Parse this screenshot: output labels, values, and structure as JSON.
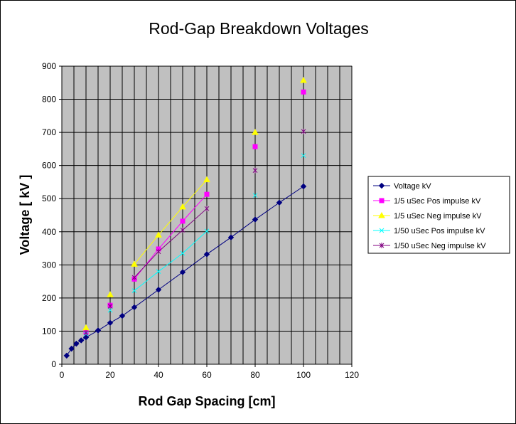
{
  "chart_data": {
    "type": "scatter",
    "title": "Rod-Gap Breakdown Voltages",
    "xlabel": "Rod Gap Spacing [cm]",
    "ylabel": "Voltage [ kV ]",
    "xlim": [
      0,
      120
    ],
    "ylim": [
      0,
      900
    ],
    "xticks": [
      0,
      20,
      40,
      60,
      80,
      100,
      120
    ],
    "yticks": [
      0,
      100,
      200,
      300,
      400,
      500,
      600,
      700,
      800,
      900
    ],
    "grid": true,
    "legend_position": "right",
    "plot_background": "#c0c0c0",
    "series": [
      {
        "name": "Voltage kV",
        "color": "#000080",
        "marker": "diamond",
        "x": [
          2,
          4,
          6,
          8,
          10,
          15,
          20,
          25,
          30,
          40,
          50,
          60,
          70,
          80,
          90,
          100
        ],
        "y": [
          26,
          47,
          62,
          72,
          81,
          102,
          125,
          146,
          172,
          225,
          278,
          332,
          383,
          437,
          488,
          537
        ],
        "connect_from_index": 0
      },
      {
        "name": "1/5 uSec  Pos impulse kV",
        "color": "#ff00ff",
        "marker": "square",
        "x": [
          10,
          20,
          30,
          40,
          50,
          60,
          80,
          100
        ],
        "y": [
          98,
          178,
          257,
          348,
          432,
          513,
          657,
          822
        ],
        "connect_from_index": 2,
        "connect_to_index": 5
      },
      {
        "name": "1/5 uSec Neg impulse kV",
        "color": "#ffff00",
        "marker": "triangle",
        "x": [
          10,
          20,
          30,
          40,
          50,
          60,
          80,
          100
        ],
        "y": [
          110,
          210,
          302,
          390,
          475,
          557,
          700,
          857
        ],
        "connect_from_index": 2,
        "connect_to_index": 5
      },
      {
        "name": "1/50 uSec Pos impulse kV",
        "color": "#00ffff",
        "marker": "x",
        "x": [
          10,
          20,
          30,
          40,
          50,
          60,
          80,
          100
        ],
        "y": [
          92,
          163,
          222,
          280,
          335,
          402,
          510,
          630
        ],
        "connect_from_index": 2,
        "connect_to_index": 5
      },
      {
        "name": "1/50 uSec  Neg impulse kV",
        "color": "#800080",
        "marker": "star",
        "x": [
          10,
          20,
          30,
          40,
          50,
          60,
          80,
          100
        ],
        "y": [
          95,
          175,
          262,
          340,
          405,
          470,
          585,
          703
        ],
        "connect_from_index": 2,
        "connect_to_index": 5
      }
    ]
  }
}
